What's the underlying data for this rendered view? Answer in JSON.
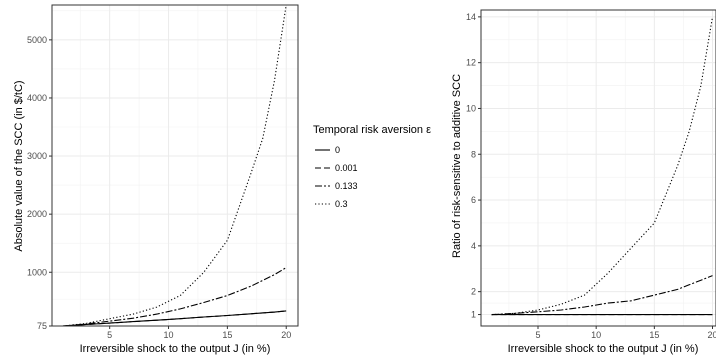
{
  "legend": {
    "title": "Temporal risk aversion ε",
    "position": "center",
    "entries": [
      {
        "label": "0",
        "dash": "none"
      },
      {
        "label": "0.001",
        "dash": "6,3"
      },
      {
        "label": "0.133",
        "dash": "7,2,2,2"
      },
      {
        "label": "0.3",
        "dash": "1.2,2.2"
      }
    ]
  },
  "chart_data": [
    {
      "type": "line",
      "title": "",
      "xlabel": "Irreversible shock to the output J (in %)",
      "ylabel": "Absolute value of the SCC (in $/tC)",
      "xlim": [
        0.1,
        21
      ],
      "ylim": [
        75,
        5600
      ],
      "xticks": [
        5,
        10,
        15,
        20
      ],
      "yticks": [
        75,
        1000,
        2000,
        3000,
        4000,
        5000
      ],
      "grid": true,
      "x": [
        1,
        3,
        5,
        7,
        9,
        11,
        13,
        15,
        17,
        18,
        19,
        20
      ],
      "series": [
        {
          "name": "0",
          "values": [
            75,
            100,
            125,
            150,
            175,
            200,
            230,
            255,
            285,
            300,
            315,
            335
          ]
        },
        {
          "name": "0.001",
          "values": [
            75,
            100,
            125,
            150,
            175,
            200,
            230,
            255,
            285,
            300,
            315,
            335
          ]
        },
        {
          "name": "0.133",
          "values": [
            75,
            110,
            160,
            210,
            280,
            370,
            480,
            600,
            760,
            860,
            960,
            1080
          ]
        },
        {
          "name": "0.3",
          "values": [
            75,
            120,
            200,
            280,
            400,
            600,
            1000,
            1550,
            2700,
            3300,
            4300,
            5600
          ]
        }
      ]
    },
    {
      "type": "line",
      "title": "",
      "xlabel": "Irreversible shock to the output J (in %)",
      "ylabel": "Ratio of risk-sensitive to additive SCC",
      "xlim": [
        0.1,
        20.3
      ],
      "ylim": [
        0.5,
        14.3
      ],
      "xticks": [
        5,
        10,
        15,
        20
      ],
      "yticks": [
        1,
        2,
        4,
        6,
        8,
        10,
        12,
        14
      ],
      "grid": true,
      "x": [
        1,
        3,
        5,
        7,
        9,
        11,
        13,
        15,
        17,
        18,
        19,
        20
      ],
      "series": [
        {
          "name": "0",
          "values": [
            1,
            1,
            1,
            1,
            1,
            1,
            1,
            1,
            1,
            1,
            1,
            1
          ]
        },
        {
          "name": "0.001",
          "values": [
            1,
            1,
            1,
            1,
            1,
            1,
            1,
            1,
            1,
            1,
            1,
            1
          ]
        },
        {
          "name": "0.133",
          "values": [
            1,
            1.05,
            1.12,
            1.2,
            1.33,
            1.5,
            1.6,
            1.85,
            2.1,
            2.3,
            2.5,
            2.7
          ]
        },
        {
          "name": "0.3",
          "values": [
            1,
            1.05,
            1.2,
            1.45,
            1.85,
            2.8,
            3.9,
            5.0,
            7.5,
            9.0,
            11.0,
            14.0
          ]
        }
      ]
    }
  ]
}
